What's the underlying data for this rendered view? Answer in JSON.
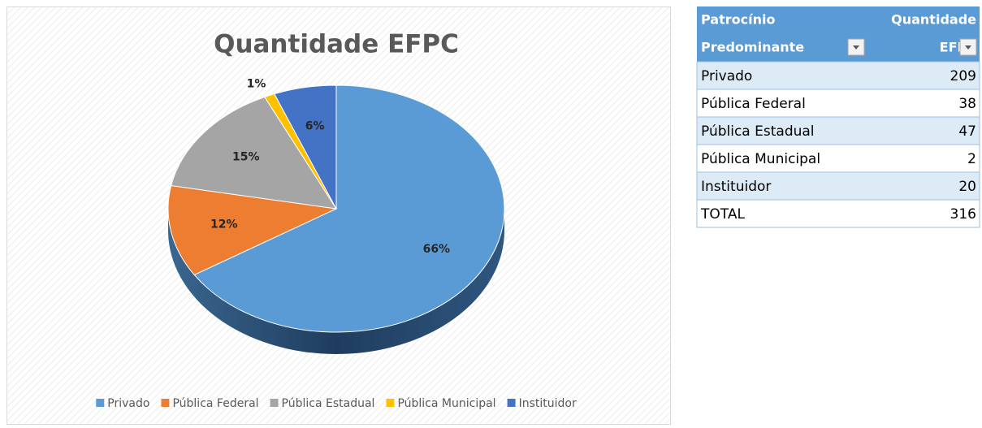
{
  "chart_data": {
    "type": "pie",
    "title": "Quantidade EFPC",
    "categories": [
      "Privado",
      "Pública Federal",
      "Pública Estadual",
      "Pública Municipal",
      "Instituidor"
    ],
    "values": [
      66,
      12,
      15,
      1,
      6
    ],
    "value_labels": [
      "66%",
      "12%",
      "15%",
      "1%",
      "6%"
    ],
    "colors": [
      "#5b9bd5",
      "#ed7d31",
      "#a5a5a5",
      "#ffc000",
      "#4472c4"
    ],
    "legend": "bottom"
  },
  "table": {
    "columns": [
      [
        "Patrocínio",
        "Predominante"
      ],
      [
        "Quantidade",
        "EFPC"
      ]
    ],
    "rows": [
      [
        "Privado",
        209
      ],
      [
        "Pública Federal",
        38
      ],
      [
        "Pública Estadual",
        47
      ],
      [
        "Pública Municipal",
        2
      ],
      [
        "Instituidor",
        20
      ],
      [
        "TOTAL",
        316
      ]
    ]
  }
}
